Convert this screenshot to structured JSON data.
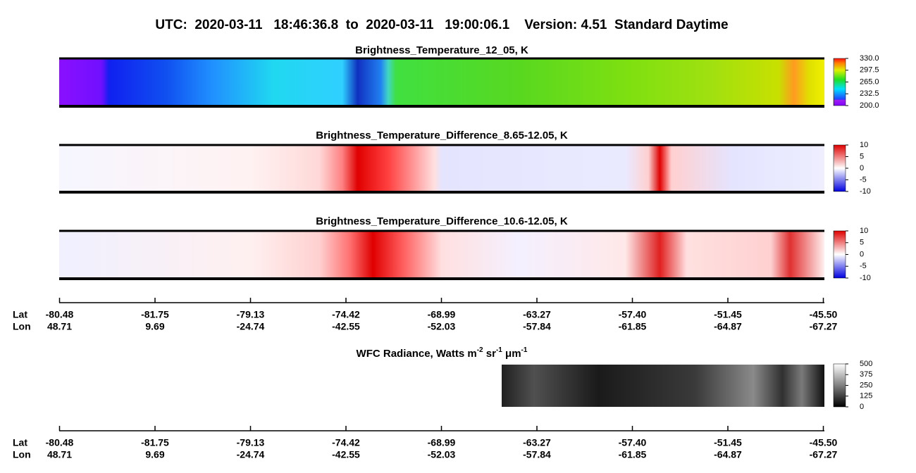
{
  "title": "UTC:  2020-03-11   18:46:36.8  to  2020-03-11   19:00:06.1    Version: 4.51  Standard Daytime",
  "panels": [
    {
      "title": "Brightness_Temperature_12_05, K",
      "colorbar": {
        "range": [
          200,
          330
        ],
        "ticks": [
          {
            "value": 330,
            "label": "330.0"
          },
          {
            "value": 297.5,
            "label": "297.5"
          },
          {
            "value": 265,
            "label": "265.0"
          },
          {
            "value": 232.5,
            "label": "232.5"
          },
          {
            "value": 200,
            "label": "200.0"
          }
        ]
      }
    },
    {
      "title": "Brightness_Temperature_Difference_8.65-12.05, K",
      "colorbar": {
        "range": [
          -10,
          10
        ],
        "ticks": [
          10,
          5,
          0,
          -5,
          -10
        ]
      }
    },
    {
      "title": "Brightness_Temperature_Difference_10.6-12.05, K",
      "colorbar": {
        "range": [
          -10,
          10
        ],
        "ticks": [
          10,
          5,
          0,
          -5,
          -10
        ]
      }
    },
    {
      "title_parts": [
        "WFC Radiance, Watts m",
        "-2",
        " sr",
        "-1",
        " μm",
        "-1"
      ],
      "colorbar": {
        "range": [
          0,
          500
        ],
        "ticks": [
          500,
          375,
          250,
          125,
          0
        ]
      }
    }
  ],
  "axes": [
    {
      "lat_label": "Lat",
      "lon_label": "Lon",
      "lat": [
        "-80.48",
        "-81.75",
        "-79.13",
        "-74.42",
        "-68.99",
        "-63.27",
        "-57.40",
        "-51.45",
        "-45.50"
      ],
      "lon": [
        "48.71",
        "9.69",
        "-24.74",
        "-42.55",
        "-52.03",
        "-57.84",
        "-61.85",
        "-64.87",
        "-67.27"
      ]
    },
    {
      "lat_label": "Lat",
      "lon_label": "Lon",
      "lat": [
        "-80.48",
        "-81.75",
        "-79.13",
        "-74.42",
        "-68.99",
        "-63.27",
        "-57.40",
        "-51.45",
        "-45.50"
      ],
      "lon": [
        "48.71",
        "9.69",
        "-24.74",
        "-42.55",
        "-52.03",
        "-57.84",
        "-61.85",
        "-64.87",
        "-67.27"
      ]
    }
  ]
}
